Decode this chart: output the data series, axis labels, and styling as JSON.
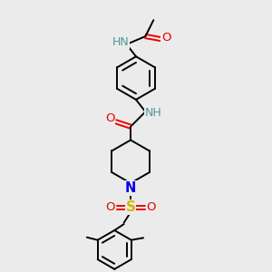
{
  "bg_color": "#ebebeb",
  "bond_color": "#000000",
  "N_color": "#0000ee",
  "O_color": "#ee0000",
  "S_color": "#ccbb00",
  "H_color": "#4a9999",
  "line_width": 1.4,
  "figsize": [
    3.0,
    3.0
  ],
  "dpi": 100,
  "xlim": [
    0,
    10
  ],
  "ylim": [
    0,
    10
  ]
}
